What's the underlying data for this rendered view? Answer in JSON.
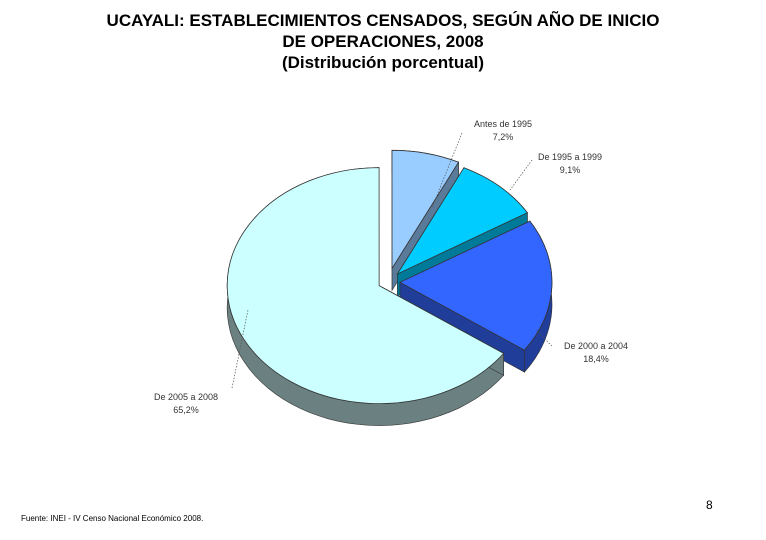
{
  "title": {
    "line1": "UCAYALI: ESTABLECIMIENTOS CENSADOS, SEGÚN AÑO DE INICIO",
    "line2": "DE OPERACIONES, 2008",
    "line3": "(Distribución porcentual)"
  },
  "chart_data": {
    "type": "pie",
    "style": "3d-exploded",
    "legend": "none",
    "slices": [
      {
        "label": "Antes de 1995",
        "value": 7.2,
        "value_label": "7,2%",
        "color": "#99CCFF",
        "side_color": "#5A7A99"
      },
      {
        "label": "De 1995 a 1999",
        "value": 9.1,
        "value_label": "9,1%",
        "color": "#00CCFF",
        "side_color": "#007A99"
      },
      {
        "label": "De 2000 a 2004",
        "value": 18.4,
        "value_label": "18,4%",
        "color": "#3366FF",
        "side_color": "#1F3D99"
      },
      {
        "label": "De 2005 a 2008",
        "value": 65.2,
        "value_label": "65,2%",
        "color": "#CCFFFF",
        "side_color": "#6B8080"
      }
    ]
  },
  "footer": {
    "page_number": "8",
    "source": "Fuente: INEI - IV Censo Nacional Económico 2008."
  }
}
